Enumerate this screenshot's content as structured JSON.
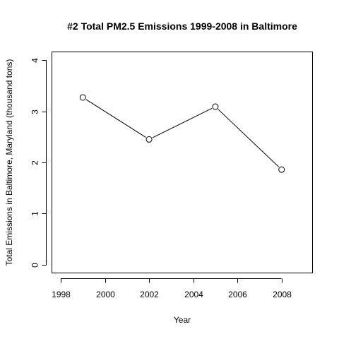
{
  "chart_data": {
    "type": "line",
    "title": "#2 Total PM2.5 Emissions 1999-2008 in Baltimore",
    "xlabel": "Year",
    "ylabel": "Total Emissions in Baltimore, Maryland (thousand tons)",
    "x": [
      1999,
      2002,
      2005,
      2008
    ],
    "values": [
      3.27,
      2.45,
      3.09,
      1.86
    ],
    "xlim": [
      1997.6,
      2009.4
    ],
    "ylim": [
      -0.16,
      4.16
    ],
    "x_ticks": [
      "1998",
      "2000",
      "2002",
      "2004",
      "2006",
      "2008"
    ],
    "y_ticks": [
      "0",
      "1",
      "2",
      "3",
      "4"
    ],
    "grid": false,
    "legend": "none",
    "markers": "open-circle"
  }
}
